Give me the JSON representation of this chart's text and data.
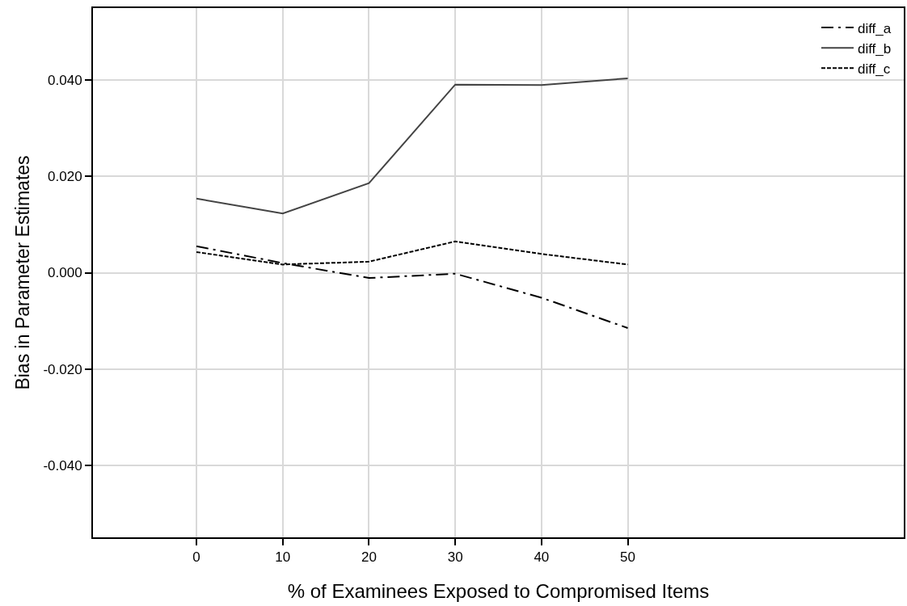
{
  "chart_data": {
    "type": "line",
    "xlabel": "% of Examinees Exposed to Compromised Items",
    "ylabel": "Bias in Parameter Estimates",
    "x": [
      0,
      10,
      20,
      30,
      40,
      50
    ],
    "series": [
      {
        "name": "diff_a",
        "color": "#000000",
        "line_style": "dashdot",
        "values": [
          0.0055,
          0.002,
          -0.0011,
          -0.0002,
          -0.0052,
          -0.0115
        ]
      },
      {
        "name": "diff_b",
        "color": "#444444",
        "line_style": "solid",
        "values": [
          0.0154,
          0.0123,
          0.0186,
          0.0391,
          0.039,
          0.0404
        ]
      },
      {
        "name": "diff_c",
        "color": "#000000",
        "line_style": "dashed",
        "values": [
          0.0043,
          0.0017,
          0.0023,
          0.0065,
          0.0039,
          0.0017
        ]
      }
    ],
    "xlim": [
      -12,
      82
    ],
    "xticks": [
      0,
      10,
      20,
      30,
      40,
      50
    ],
    "ylim": [
      -0.055,
      0.055
    ],
    "yticks": [
      {
        "value": -0.04,
        "label": "-0.040"
      },
      {
        "value": -0.02,
        "label": "-0.020"
      },
      {
        "value": 0,
        "label": "0.000"
      },
      {
        "value": 0.02,
        "label": "0.020"
      },
      {
        "value": 0.04,
        "label": "0.040"
      }
    ],
    "grid": true,
    "legend": "top right",
    "marker": "none"
  }
}
